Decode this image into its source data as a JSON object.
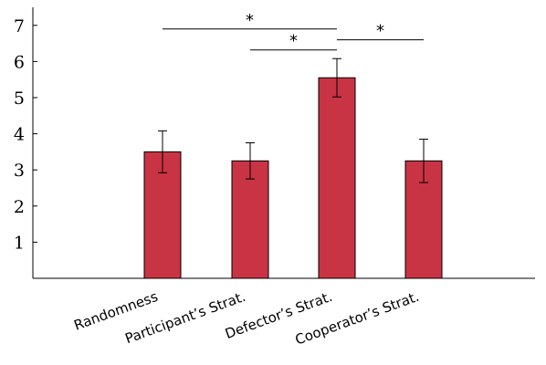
{
  "chart_data": {
    "type": "bar",
    "categories": [
      "Randomness",
      "Participant’s Strat.",
      "Defector’s Strat.",
      "Cooperator’s Strat."
    ],
    "values": [
      3.5,
      3.25,
      5.55,
      3.25
    ],
    "errors": [
      0.58,
      0.5,
      0.53,
      0.6
    ],
    "yticks": [
      1,
      2,
      3,
      4,
      5,
      6,
      7
    ],
    "ylim": [
      0,
      7.5
    ],
    "grid": false,
    "bar_color": "#c83444",
    "significance": [
      {
        "from": 0,
        "to": 2,
        "label": "*",
        "y": 6.9
      },
      {
        "from": 1,
        "to": 2,
        "label": "*",
        "y": 6.32
      },
      {
        "from": 2,
        "to": 3,
        "label": "*",
        "y": 6.6
      }
    ]
  }
}
